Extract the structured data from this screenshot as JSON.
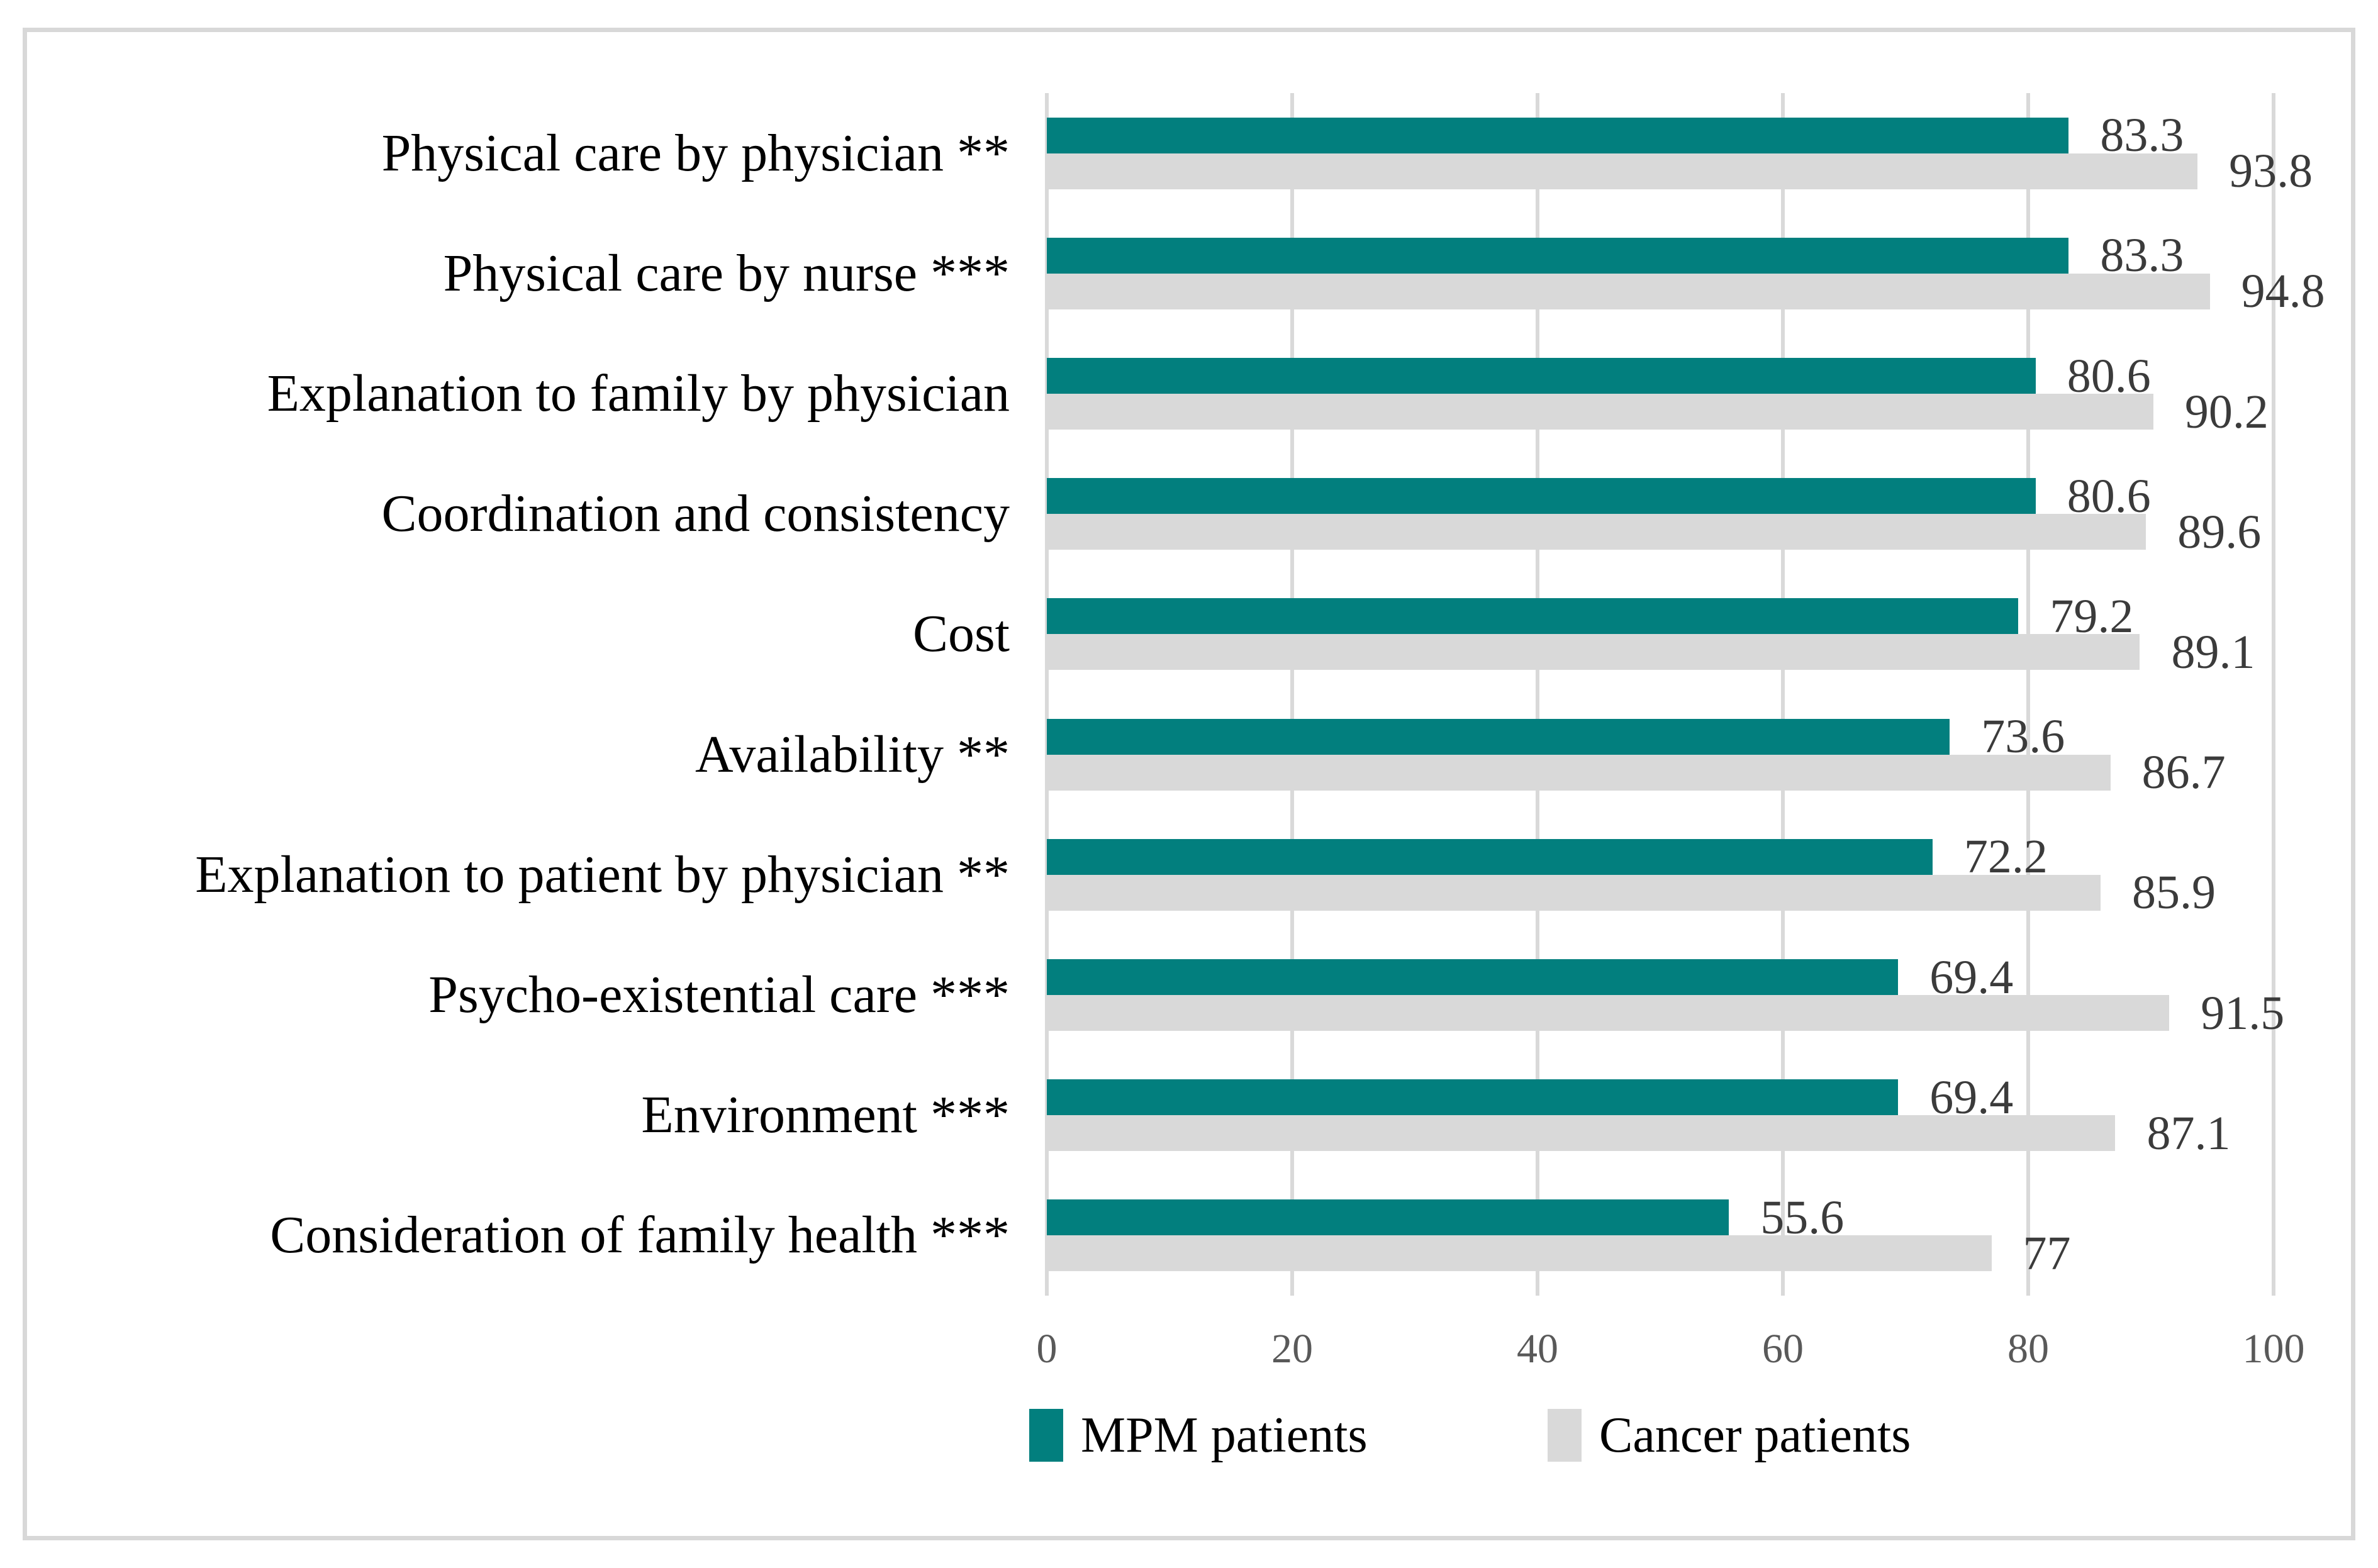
{
  "chart_data": {
    "type": "bar",
    "orientation": "horizontal",
    "title": "",
    "xlabel": "",
    "ylabel": "",
    "xlim": [
      0,
      100
    ],
    "x_ticks": [
      0,
      20,
      40,
      60,
      80,
      100
    ],
    "grid": true,
    "legend_position": "bottom",
    "value_labels": true,
    "categories": [
      "Physical care by physician **",
      "Physical care by nurse ***",
      "Explanation to family by physician",
      "Coordination and consistency",
      "Cost",
      "Availability **",
      "Explanation to patient by physician **",
      "Psycho-existential care ***",
      "Environment ***",
      "Consideration of family health ***"
    ],
    "series": [
      {
        "name": "MPM patients",
        "color": "#027f7e",
        "values": [
          83.3,
          83.3,
          80.6,
          80.6,
          79.2,
          73.6,
          72.2,
          69.4,
          69.4,
          55.6
        ]
      },
      {
        "name": "Cancer patients",
        "color": "#d9d9d9",
        "values": [
          93.8,
          94.8,
          90.2,
          89.6,
          89.1,
          86.7,
          85.9,
          91.5,
          87.1,
          77
        ]
      }
    ]
  },
  "legend": {
    "mpm_label": "MPM patients",
    "cancer_label": "Cancer patients"
  },
  "colors": {
    "mpm_bar": "#027f7e",
    "cancer_bar": "#d9d9d9",
    "gridline": "#d9d9d9",
    "frame_border": "#d8d8d8",
    "value_label_text": "#3b3b3b",
    "axis_tick_text": "#595959",
    "category_text": "#000000",
    "background": "#ffffff"
  }
}
